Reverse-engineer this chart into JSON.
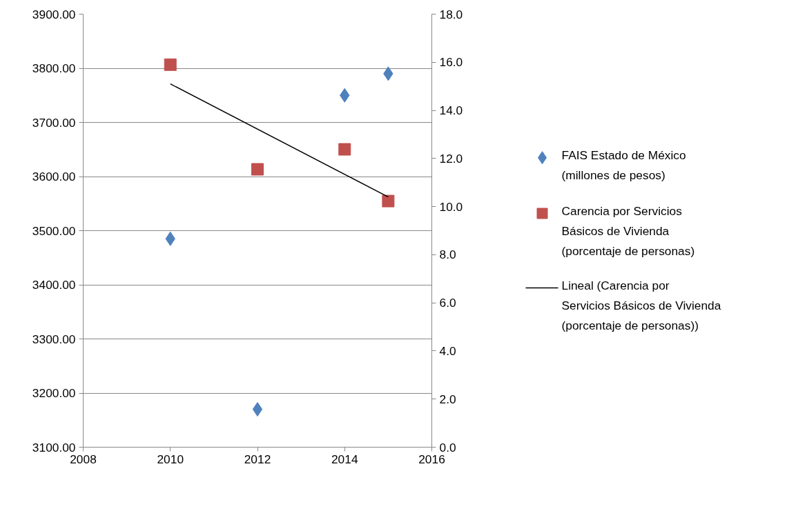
{
  "chart_data": {
    "type": "scatter",
    "x": [
      2010,
      2012,
      2014,
      2015
    ],
    "series": [
      {
        "name": "FAIS Estado de México (millones de pesos)",
        "color": "#4f81bd",
        "marker": "diamond",
        "values": [
          3485,
          3170,
          3750,
          3790
        ]
      },
      {
        "name": "Carencia por Servicios Básicos de Vivienda (porcentaje de personas)",
        "color": "#c0504d",
        "marker": "square",
        "axis": "y2",
        "values": [
          15.9,
          11.55,
          12.38,
          10.23
        ]
      },
      {
        "name": "Lineal (Carencia por Servicios Básicos de Vivienda (porcentaje de personas))",
        "type": "line",
        "color": "#000000",
        "marker": "none",
        "axis": "y2",
        "x": [
          2010,
          2015
        ],
        "values": [
          15.1,
          10.4
        ]
      }
    ],
    "xlim": [
      2008,
      2016
    ],
    "xticks": [
      2008,
      2010,
      2012,
      2014,
      2016
    ],
    "ylim": [
      3100,
      3900
    ],
    "yticks": [
      {
        "value": 3100,
        "label": "3100.00"
      },
      {
        "value": 3200,
        "label": "3200.00"
      },
      {
        "value": 3300,
        "label": "3300.00"
      },
      {
        "value": 3400,
        "label": "3400.00"
      },
      {
        "value": 3500,
        "label": "3500.00"
      },
      {
        "value": 3600,
        "label": "3600.00"
      },
      {
        "value": 3700,
        "label": "3700.00"
      },
      {
        "value": 3800,
        "label": "3800.00"
      },
      {
        "value": 3900,
        "label": "3900.00"
      }
    ],
    "y2lim": [
      0,
      18
    ],
    "y2ticks": [
      {
        "value": 0,
        "label": "0.0"
      },
      {
        "value": 2,
        "label": "2.0"
      },
      {
        "value": 4,
        "label": "4.0"
      },
      {
        "value": 6,
        "label": "6.0"
      },
      {
        "value": 8,
        "label": "8.0"
      },
      {
        "value": 10,
        "label": "10.0"
      },
      {
        "value": 12,
        "label": "12.0"
      },
      {
        "value": 14,
        "label": "14.0"
      },
      {
        "value": 16,
        "label": "16.0"
      },
      {
        "value": 18,
        "label": "18.0"
      }
    ],
    "grid": "y",
    "legend": "right"
  }
}
